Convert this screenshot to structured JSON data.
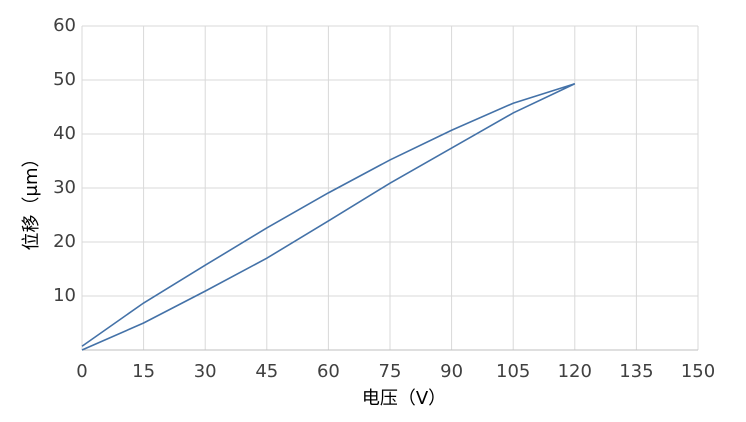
{
  "chart_data": {
    "type": "line",
    "x_label": "电压（V）",
    "y_label": "位移（μm）",
    "x": [
      0,
      15,
      30,
      45,
      60,
      75,
      90,
      105,
      120,
      105,
      90,
      75,
      60,
      45,
      30,
      15,
      0
    ],
    "series": [
      {
        "color": "#4472a8",
        "values": [
          0,
          5.0,
          10.9,
          17.0,
          23.9,
          30.9,
          37.4,
          43.9,
          49.3,
          45.7,
          40.7,
          35.2,
          29.1,
          22.6,
          15.7,
          8.7,
          0.7
        ]
      }
    ],
    "xlim": [
      0,
      150
    ],
    "xticks": [
      0,
      15,
      30,
      45,
      60,
      75,
      90,
      105,
      120,
      135,
      150
    ],
    "ylim": [
      0,
      60
    ],
    "yticks": [
      10,
      20,
      30,
      40,
      50,
      60
    ],
    "grid": true
  }
}
